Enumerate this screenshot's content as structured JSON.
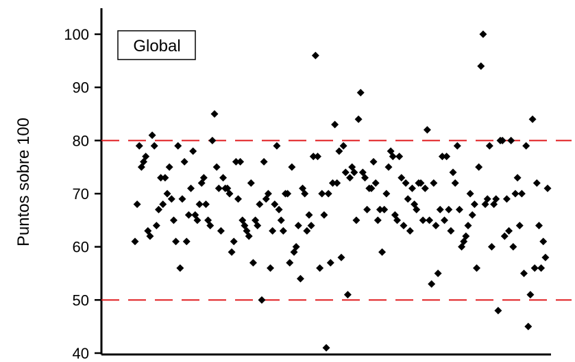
{
  "chart_data": {
    "type": "scatter",
    "title": "",
    "xlabel": "",
    "ylabel": "Puntos sobre 100",
    "ylim": [
      40,
      100
    ],
    "yticks": [
      "40",
      "50",
      "60",
      "70",
      "80",
      "90",
      "100"
    ],
    "grid": false,
    "legend_box": "Global",
    "reference_lines": [
      {
        "y": 80,
        "color": "#e0191c",
        "style": "dashed"
      },
      {
        "y": 50,
        "color": "#e0191c",
        "style": "dashed"
      }
    ],
    "marker_color": "#000000",
    "series": [
      {
        "values": [
          61,
          68,
          79,
          75,
          76,
          77,
          63,
          62,
          81,
          79,
          64,
          67,
          73,
          68,
          73,
          70,
          75,
          69,
          65,
          61,
          79,
          56,
          69,
          76,
          61,
          66,
          71,
          78,
          66,
          65,
          68,
          72,
          73,
          68,
          65,
          64,
          80,
          85,
          75,
          71,
          63,
          73,
          71,
          71,
          70,
          59,
          61,
          76,
          69,
          76,
          65,
          64,
          63,
          62,
          72,
          57,
          65,
          64,
          68,
          50,
          76,
          69,
          70,
          56,
          63,
          68,
          79,
          67,
          65,
          63,
          70,
          70,
          57,
          75,
          59,
          60,
          64,
          54,
          71,
          70,
          63,
          66,
          64,
          77,
          96,
          77,
          56,
          70,
          66,
          41,
          70,
          57,
          72,
          83,
          72,
          78,
          58,
          79,
          74,
          51,
          73,
          75,
          74,
          65,
          84,
          89,
          74,
          73,
          67,
          71,
          71,
          76,
          72,
          65,
          67,
          59,
          67,
          70,
          75,
          78,
          77,
          66,
          65,
          77,
          73,
          64,
          72,
          69,
          63,
          71,
          68,
          67,
          72,
          72,
          65,
          71,
          82,
          65,
          53,
          72,
          64,
          55,
          67,
          77,
          65,
          77,
          67,
          63,
          74,
          72,
          79,
          67,
          60,
          61,
          62,
          64,
          70,
          66,
          68,
          56,
          75,
          94,
          100,
          68,
          69,
          79,
          60,
          68,
          69,
          48,
          80,
          80,
          62,
          69,
          63,
          80,
          60,
          70,
          73,
          64,
          70,
          55,
          79,
          45,
          51,
          84,
          56,
          72,
          64,
          56,
          61,
          58,
          71
        ]
      }
    ]
  }
}
